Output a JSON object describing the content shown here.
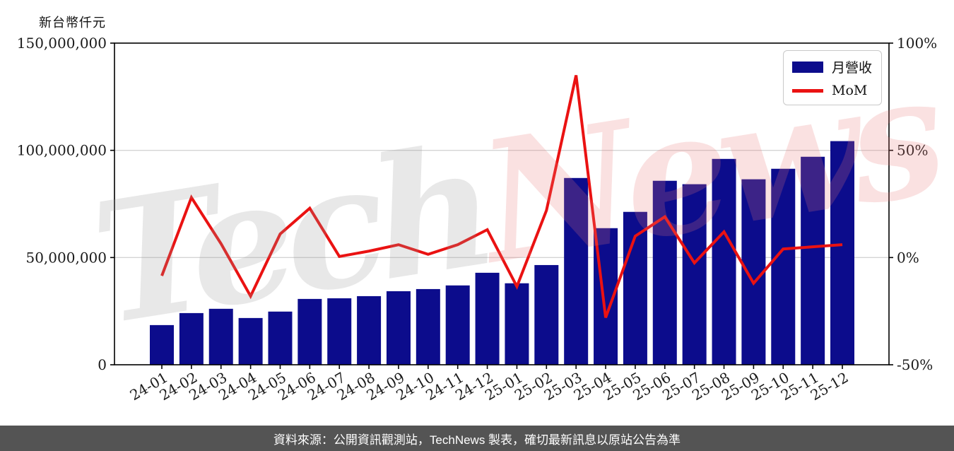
{
  "title": "新台幣仟元",
  "legend": {
    "bar_label": "月營收",
    "line_label": "MoM"
  },
  "caption": "資料來源：公開資訊觀測站，TechNews 製表，確切最新訊息以原站公告為準",
  "watermark": {
    "part1": "Tech",
    "part2": "News"
  },
  "colors": {
    "bar": "#0c0c8c",
    "line": "#ea1212",
    "grid": "#d4d4d4",
    "spine": "#000000",
    "caption_bg": "#545454",
    "caption_text": "#ffffff"
  },
  "chart_data": {
    "type": "bar+line",
    "title": "新台幣仟元",
    "categories": [
      "24-01",
      "24-02",
      "24-03",
      "24-04",
      "24-05",
      "24-06",
      "24-07",
      "24-08",
      "24-09",
      "24-10",
      "24-11",
      "24-12",
      "25-01",
      "25-02",
      "25-03",
      "25-04",
      "25-05",
      "25-06",
      "25-07",
      "25-08",
      "25-09",
      "25-10",
      "25-11",
      "25-12"
    ],
    "series": [
      {
        "name": "月營收",
        "type": "bar",
        "axis": "left",
        "values": [
          18500000,
          24100000,
          26100000,
          21800000,
          24800000,
          30700000,
          31000000,
          32000000,
          34300000,
          35300000,
          37000000,
          42900000,
          38000000,
          46500000,
          87100000,
          63700000,
          71300000,
          85800000,
          84200000,
          96000000,
          86500000,
          91400000,
          97000000,
          104300000
        ]
      },
      {
        "name": "MoM",
        "type": "line",
        "axis": "right",
        "values": [
          -8.5,
          28,
          6.5,
          -18,
          11,
          23,
          0.5,
          3,
          6,
          1.5,
          6,
          13,
          -13.5,
          22,
          85,
          -28,
          10,
          19,
          -2.5,
          12,
          -12,
          4,
          5,
          6
        ]
      }
    ],
    "left_axis": {
      "min": 0,
      "max": 150000000,
      "tick_values": [
        0,
        50000000,
        100000000,
        150000000
      ],
      "tick_labels": [
        "0",
        "50,000,000",
        "100,000,000",
        "150,000,000"
      ]
    },
    "right_axis": {
      "min": -50,
      "max": 100,
      "tick_values": [
        -50,
        0,
        50,
        100
      ],
      "tick_labels": [
        "-50%",
        "0%",
        "50%",
        "100%"
      ]
    },
    "gridline_values_left": [
      50000000,
      100000000
    ],
    "grid": "horizontal",
    "legend_position": "upper-right",
    "x_tick_rotation_deg": 30
  }
}
